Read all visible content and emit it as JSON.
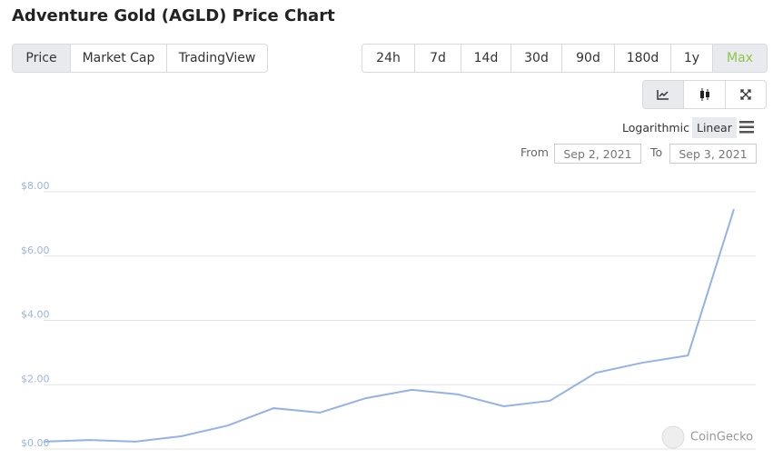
{
  "title": "Adventure Gold (AGLD) Price Chart",
  "tabs": [
    "Price",
    "Market Cap",
    "TradingView"
  ],
  "ranges": [
    "24h",
    "7d",
    "14d",
    "30d",
    "90d",
    "180d",
    "1y",
    "Max"
  ],
  "scale_options": [
    "Logarithmic",
    "Linear"
  ],
  "from_label": "From",
  "from": "Sep 2, 2021",
  "to_label": "To",
  "to": "Sep 3, 2021",
  "watermark": "CoinGecko",
  "chart_data": {
    "type": "line",
    "series": [
      {
        "name": "Price",
        "color": "#94b2e6",
        "values": [
          0.23,
          0.28,
          0.23,
          0.4,
          0.73,
          1.27,
          1.13,
          1.58,
          1.84,
          1.7,
          1.33,
          1.5,
          2.37,
          2.68,
          2.91,
          7.46
        ]
      }
    ],
    "ylim": [
      0,
      8
    ],
    "yticks": [
      {
        "value": 0,
        "label": "$0.00"
      },
      {
        "value": 2,
        "label": "$2.00"
      },
      {
        "value": 4,
        "label": "$4.00"
      },
      {
        "value": 6,
        "label": "$6.00"
      },
      {
        "value": 8,
        "label": "$8.00"
      }
    ],
    "grid": true
  }
}
